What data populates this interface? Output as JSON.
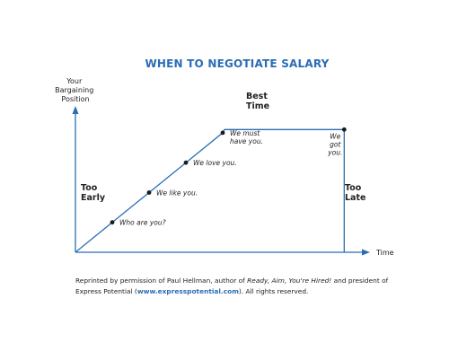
{
  "chart_data": {
    "type": "line",
    "title": "WHEN TO NEGOTIATE SALARY",
    "ylabel": [
      "Your",
      "Bargaining",
      "Position"
    ],
    "xlabel": "Time",
    "phases": {
      "too_early": [
        "Too",
        "Early"
      ],
      "best_time": [
        "Best",
        "Time"
      ],
      "too_late": [
        "Too",
        "Late"
      ]
    },
    "series": [
      {
        "values": [
          {
            "x": 0,
            "y": 0
          },
          {
            "x": 1,
            "y": 1
          },
          {
            "x": 2,
            "y": 2
          },
          {
            "x": 3,
            "y": 3
          },
          {
            "x": 4,
            "y": 4
          },
          {
            "x": 4.05,
            "y": 4.11
          },
          {
            "x": 7.3,
            "y": 4.11
          },
          {
            "x": 7.3,
            "y": 0
          }
        ]
      }
    ],
    "points": [
      {
        "x": 1,
        "y": 1,
        "label": [
          "Who are you?"
        ]
      },
      {
        "x": 2,
        "y": 2,
        "label": [
          "We like you."
        ]
      },
      {
        "x": 3,
        "y": 3,
        "label": [
          "We love you."
        ]
      },
      {
        "x": 4,
        "y": 4,
        "label": [
          "We must",
          "have you."
        ]
      },
      {
        "x": 7.3,
        "y": 4.11,
        "label": [
          "We",
          "got",
          "you."
        ]
      }
    ],
    "xlim": [
      0,
      8
    ],
    "ylim": [
      0,
      4.9
    ],
    "grid": false,
    "colors": {
      "line": "#2a6db4",
      "title": "#2a6db4",
      "points": "#1a1a1a"
    }
  },
  "caption": {
    "part1": "Reprinted by permission of Paul Hellman, author of ",
    "book": "Ready, Aim, You're Hired!",
    "part2": " and president of Express Potential (",
    "link": "www.expresspotential.com",
    "part3": "). All rights reserved."
  }
}
